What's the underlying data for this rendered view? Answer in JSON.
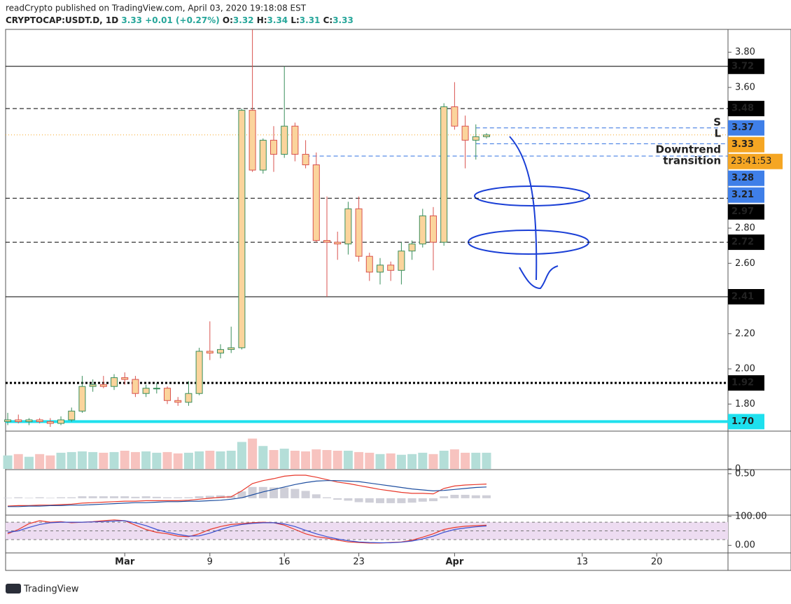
{
  "header": {
    "publisher": "readCrypto published on TradingView.com, April 03, 2020 19:18:08 EST",
    "symbol": "CRYPTOCAP:USDT.D, 1D",
    "price": "3.33",
    "change": "+0.01 (+0.27%)",
    "ohlc": [
      [
        "O:",
        "3.32"
      ],
      [
        "H:",
        "3.34"
      ],
      [
        "L:",
        "3.31"
      ],
      [
        "C:",
        "3.33"
      ]
    ]
  },
  "footer": "TradingView",
  "chart_data": [
    {
      "type": "candlestick",
      "open": [
        1.7,
        1.71,
        1.7,
        1.71,
        1.7,
        1.69,
        1.71,
        1.76,
        1.9,
        1.91,
        1.9,
        1.95,
        1.94,
        1.86,
        1.89,
        1.89,
        1.82,
        1.81,
        1.86,
        2.1,
        2.09,
        2.11,
        2.12,
        3.47,
        3.13,
        3.3,
        3.22,
        3.38,
        3.22,
        3.16,
        2.73,
        2.72,
        2.71,
        2.91,
        2.64,
        2.55,
        2.59,
        2.56,
        2.67,
        2.71,
        2.87,
        2.72,
        3.49,
        3.38,
        3.3,
        3.32
      ],
      "high": [
        1.75,
        1.74,
        1.72,
        1.72,
        1.72,
        1.73,
        1.78,
        1.96,
        1.94,
        1.96,
        1.97,
        1.98,
        1.96,
        1.91,
        1.92,
        1.9,
        1.84,
        1.93,
        2.12,
        2.27,
        2.14,
        2.24,
        3.48,
        3.93,
        3.31,
        3.38,
        3.72,
        3.4,
        3.3,
        3.23,
        2.98,
        2.78,
        2.95,
        2.98,
        2.66,
        2.63,
        2.61,
        2.72,
        2.73,
        2.91,
        2.92,
        3.51,
        3.63,
        3.44,
        3.39,
        3.34
      ],
      "low": [
        1.68,
        1.69,
        1.68,
        1.69,
        1.67,
        1.68,
        1.7,
        1.75,
        1.87,
        1.89,
        1.88,
        1.91,
        1.84,
        1.84,
        1.86,
        1.8,
        1.79,
        1.79,
        1.85,
        2.05,
        2.06,
        2.09,
        2.11,
        3.12,
        3.11,
        3.12,
        3.2,
        3.18,
        3.14,
        2.72,
        2.41,
        2.62,
        2.65,
        2.61,
        2.5,
        2.48,
        2.5,
        2.48,
        2.62,
        2.69,
        2.56,
        2.7,
        3.36,
        3.14,
        3.19,
        3.31
      ],
      "close": [
        1.71,
        1.7,
        1.71,
        1.7,
        1.69,
        1.71,
        1.76,
        1.9,
        1.91,
        1.9,
        1.95,
        1.94,
        1.86,
        1.89,
        1.89,
        1.82,
        1.81,
        1.86,
        2.1,
        2.09,
        2.11,
        2.12,
        3.47,
        3.13,
        3.3,
        3.22,
        3.38,
        3.22,
        3.16,
        2.73,
        2.72,
        2.71,
        2.91,
        2.64,
        2.55,
        2.59,
        2.56,
        2.67,
        2.71,
        2.87,
        2.72,
        3.49,
        3.38,
        3.3,
        3.32,
        3.33
      ],
      "up_color": "#3a8f5c",
      "down_color": "#d9534f",
      "body_color": "#fbd49c",
      "xlim": [
        -0.2,
        67.7
      ],
      "xticks": [
        {
          "value": 11,
          "label": "Mar"
        },
        {
          "value": 19,
          "label": "9"
        },
        {
          "value": 26,
          "label": "16"
        },
        {
          "value": 33,
          "label": "23"
        },
        {
          "value": 42,
          "label": "Apr"
        },
        {
          "value": 54,
          "label": "13"
        },
        {
          "value": 61,
          "label": "20"
        }
      ],
      "ylim": [
        1.65,
        3.93
      ],
      "yticks": [
        {
          "value": 1.8,
          "label": "1.80"
        },
        {
          "value": 2.0,
          "label": "2.00"
        },
        {
          "value": 2.2,
          "label": "2.20"
        },
        {
          "value": 2.6,
          "label": "2.60"
        },
        {
          "value": 2.8,
          "label": "2.80"
        },
        {
          "value": 3.6,
          "label": "3.60"
        },
        {
          "value": 3.8,
          "label": "3.80"
        }
      ],
      "levels": [
        {
          "value": 3.72,
          "label": "3.72",
          "style": "solid",
          "color": "#000000",
          "tag": "#000000"
        },
        {
          "value": 3.48,
          "label": "3.48",
          "style": "dashed",
          "color": "#000000",
          "tag": "#000000"
        },
        {
          "value": 3.37,
          "label": "3.37",
          "style": "dashed",
          "color": "#2f6fe0",
          "tag": "#3f7fe8",
          "start": 44
        },
        {
          "value": 3.33,
          "label": "3.33",
          "style": "dotted",
          "color": "#f5a623",
          "tag": "#f5a623",
          "countdown": "23:41:53"
        },
        {
          "value": 3.28,
          "label": "3.28",
          "style": "dashed",
          "color": "#2f6fe0",
          "tag": "#3f7fe8",
          "start": 44
        },
        {
          "value": 3.21,
          "label": "3.21",
          "style": "dashed",
          "color": "#2f6fe0",
          "tag": "#3f7fe8",
          "start": 28
        },
        {
          "value": 2.97,
          "label": "2.97",
          "style": "dashed",
          "color": "#000000",
          "tag": "#000000"
        },
        {
          "value": 2.72,
          "label": "2.72",
          "style": "dashed",
          "color": "#000000",
          "tag": "#000000"
        },
        {
          "value": 2.41,
          "label": "2.41",
          "style": "solid",
          "color": "#000000",
          "tag": "#000000"
        },
        {
          "value": 1.92,
          "label": "1.92",
          "style": "dotted",
          "color": "#000000",
          "tag": "#000000"
        },
        {
          "value": 1.7,
          "label": "1.70",
          "style": "thick",
          "color": "#1ee0ee",
          "tag": "#1ee0ee"
        }
      ],
      "annotations": [
        "S",
        "L",
        "Downtrend",
        "transition"
      ]
    },
    {
      "type": "bar",
      "values": [
        20,
        22,
        18,
        22,
        20,
        24,
        25,
        26,
        25,
        24,
        25,
        27,
        25,
        26,
        24,
        25,
        23,
        24,
        26,
        27,
        26,
        27,
        40,
        45,
        34,
        28,
        30,
        27,
        26,
        29,
        28,
        27,
        27,
        25,
        24,
        22,
        23,
        21,
        22,
        24,
        22,
        27,
        29,
        24,
        24,
        24
      ],
      "up_color": "#b4ded8",
      "down_color": "#f7c3bf",
      "ylim": [
        0,
        55
      ],
      "yticks": [
        0
      ]
    },
    {
      "type": "line",
      "series": [
        {
          "color": "#e8382b",
          "values": [
            -0.16,
            -0.15,
            -0.15,
            -0.14,
            -0.14,
            -0.13,
            -0.12,
            -0.1,
            -0.09,
            -0.08,
            -0.07,
            -0.06,
            -0.06,
            -0.05,
            -0.05,
            -0.05,
            -0.05,
            -0.04,
            -0.02,
            0.0,
            0.02,
            0.03,
            0.15,
            0.3,
            0.36,
            0.4,
            0.45,
            0.47,
            0.47,
            0.43,
            0.38,
            0.33,
            0.3,
            0.26,
            0.22,
            0.18,
            0.15,
            0.12,
            0.1,
            0.1,
            0.09,
            0.2,
            0.25,
            0.27,
            0.28,
            0.29
          ]
        },
        {
          "color": "#1f4fa0",
          "values": [
            -0.17,
            -0.17,
            -0.16,
            -0.16,
            -0.15,
            -0.15,
            -0.14,
            -0.14,
            -0.13,
            -0.12,
            -0.11,
            -0.1,
            -0.09,
            -0.09,
            -0.08,
            -0.07,
            -0.07,
            -0.06,
            -0.06,
            -0.05,
            -0.04,
            -0.02,
            0.01,
            0.07,
            0.13,
            0.18,
            0.23,
            0.28,
            0.32,
            0.35,
            0.36,
            0.36,
            0.35,
            0.34,
            0.31,
            0.28,
            0.25,
            0.22,
            0.19,
            0.17,
            0.15,
            0.16,
            0.18,
            0.2,
            0.22,
            0.23
          ]
        }
      ],
      "histogram": {
        "color": "#cfcfd8",
        "values": [
          0.01,
          0.02,
          0.01,
          0.02,
          0.01,
          0.02,
          0.02,
          0.04,
          0.04,
          0.04,
          0.04,
          0.04,
          0.03,
          0.04,
          0.03,
          0.02,
          0.02,
          0.02,
          0.04,
          0.05,
          0.06,
          0.05,
          0.14,
          0.23,
          0.23,
          0.22,
          0.22,
          0.19,
          0.15,
          0.08,
          0.02,
          -0.03,
          -0.05,
          -0.08,
          -0.09,
          -0.1,
          -0.1,
          -0.1,
          -0.09,
          -0.07,
          -0.06,
          0.04,
          0.07,
          0.07,
          0.06,
          0.06
        ]
      },
      "ylim": [
        -0.33,
        0.57
      ],
      "yticks": [
        {
          "value": 0.5,
          "label": "0.50"
        }
      ]
    },
    {
      "type": "line",
      "series": [
        {
          "color": "#e8382b",
          "values": [
            40,
            55,
            75,
            85,
            80,
            82,
            78,
            80,
            82,
            85,
            88,
            85,
            70,
            55,
            45,
            40,
            32,
            30,
            40,
            55,
            65,
            72,
            75,
            78,
            80,
            78,
            70,
            55,
            40,
            30,
            25,
            18,
            12,
            10,
            8,
            8,
            10,
            12,
            18,
            28,
            40,
            55,
            62,
            66,
            68,
            70
          ]
        },
        {
          "color": "#3b4fd0",
          "values": [
            45,
            50,
            62,
            72,
            78,
            80,
            80,
            80,
            81,
            82,
            84,
            85,
            78,
            68,
            55,
            45,
            38,
            32,
            33,
            42,
            55,
            65,
            72,
            76,
            78,
            78,
            74,
            65,
            52,
            40,
            30,
            22,
            16,
            12,
            10,
            9,
            9,
            11,
            15,
            22,
            32,
            45,
            55,
            60,
            64,
            67
          ]
        }
      ],
      "levels": [
        80,
        50,
        20
      ],
      "band_color": "#eddcf1",
      "ylim": [
        -26,
        102
      ],
      "yticks": [
        {
          "value": 100,
          "label": "100.00"
        },
        {
          "value": 0,
          "label": "0.00"
        }
      ]
    }
  ]
}
